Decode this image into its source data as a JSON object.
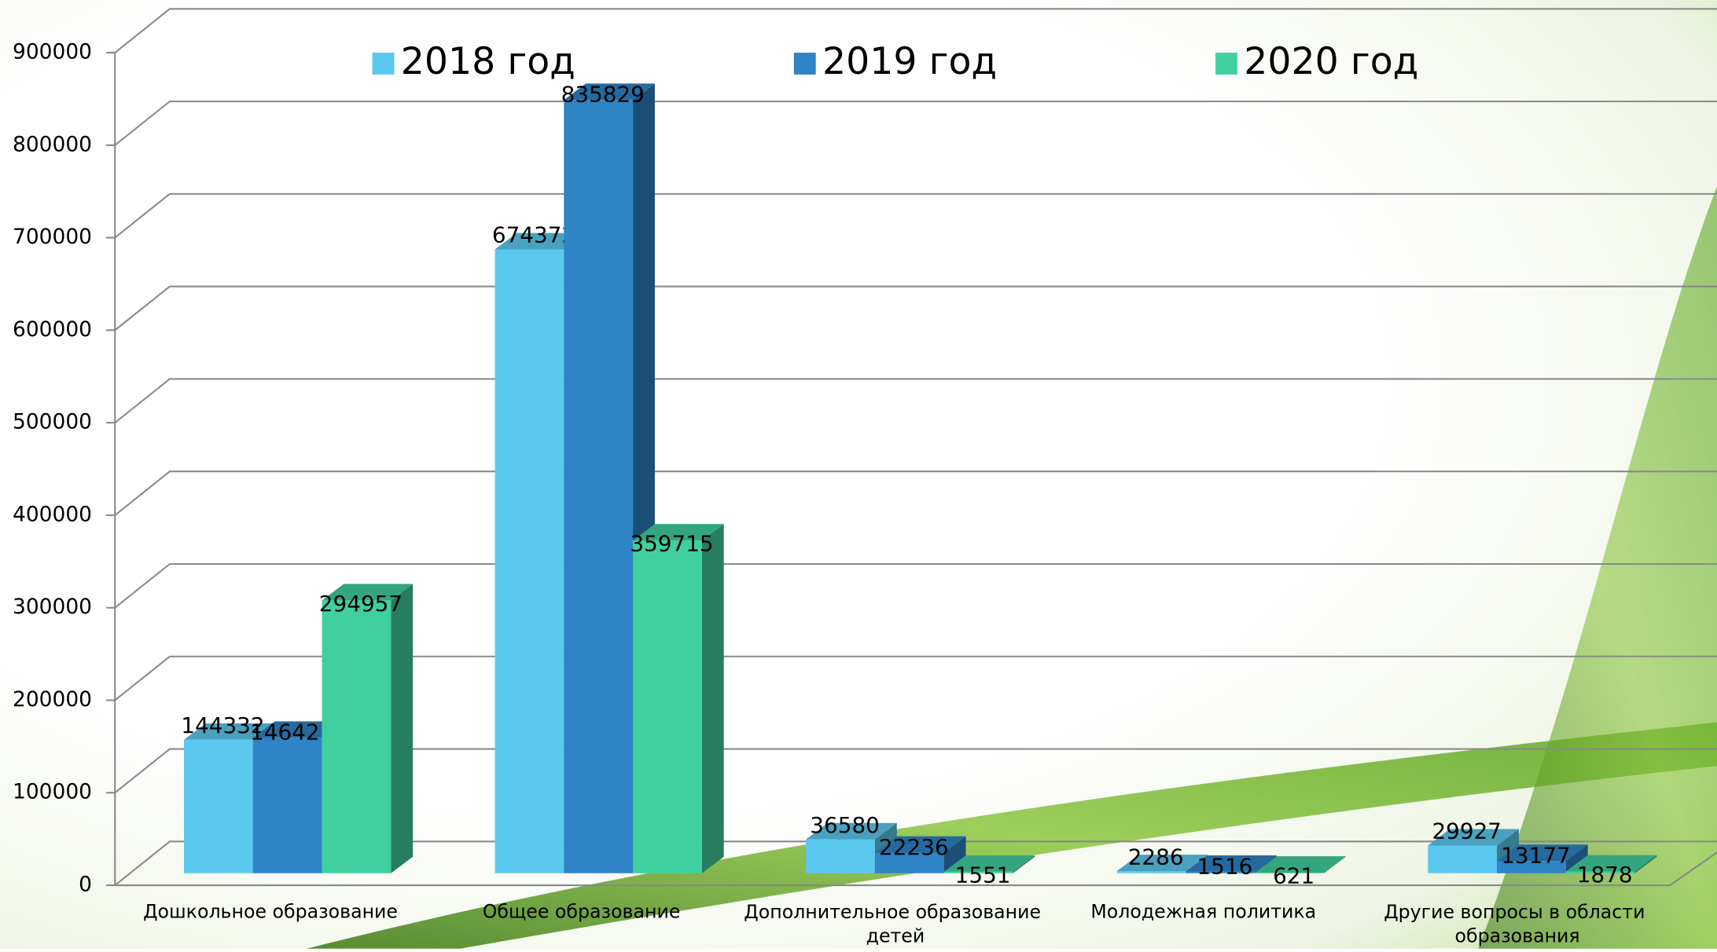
{
  "chart_data": {
    "type": "bar3d",
    "categories": [
      "Дошкольное образование",
      "Общее образование",
      "Дополнительное образование детей",
      "Молодежная политика",
      "Другие вопросы в области образования"
    ],
    "series": [
      {
        "name": "2018 год",
        "color": "#5bc9ef",
        "values": [
          144332,
          674372,
          36580,
          2286,
          29927
        ]
      },
      {
        "name": "2019 год",
        "color": "#2e84c5",
        "values": [
          146421,
          835829,
          22236,
          1516,
          13177
        ]
      },
      {
        "name": "2020 год",
        "color": "#40d09f",
        "values": [
          294957,
          359715,
          1551,
          621,
          1878
        ]
      }
    ],
    "ylim": [
      0,
      900000
    ],
    "yticks": [
      0,
      100000,
      200000,
      300000,
      400000,
      500000,
      600000,
      700000,
      800000,
      900000
    ],
    "grid": true,
    "legend": "top"
  }
}
